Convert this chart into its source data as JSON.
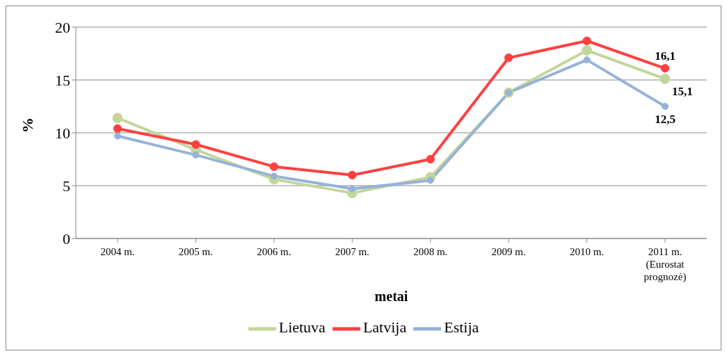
{
  "chart_data": {
    "type": "line",
    "xlabel": "metai",
    "ylabel": "%",
    "categories": [
      "2004 m.",
      "2005 m.",
      "2006 m.",
      "2007 m.",
      "2008 m.",
      "2009 m.",
      "2010 m.",
      "2011 m. (Eurostat prognozė)"
    ],
    "series": [
      {
        "name": "Lietuva",
        "color": "#c3d69b",
        "values": [
          11.4,
          8.4,
          5.6,
          4.3,
          5.8,
          13.8,
          17.8,
          15.1
        ],
        "value_labels": [
          null,
          null,
          null,
          null,
          null,
          null,
          null,
          "15,1"
        ]
      },
      {
        "name": "Latvija",
        "color": "#ff4040",
        "values": [
          10.4,
          8.9,
          6.8,
          6.0,
          7.5,
          17.1,
          18.7,
          16.1
        ],
        "value_labels": [
          null,
          null,
          null,
          null,
          null,
          null,
          null,
          "16,1"
        ]
      },
      {
        "name": "Estija",
        "color": "#95b3d7",
        "values": [
          9.7,
          7.9,
          5.9,
          4.7,
          5.5,
          13.8,
          16.9,
          12.5
        ],
        "value_labels": [
          null,
          null,
          null,
          null,
          null,
          null,
          null,
          "12,5"
        ]
      }
    ],
    "ylim": [
      0,
      20
    ],
    "yticks": [
      0,
      5,
      10,
      15,
      20
    ],
    "grid": "y",
    "legend": "bottom",
    "marker": "circle",
    "line_style": "solid"
  }
}
